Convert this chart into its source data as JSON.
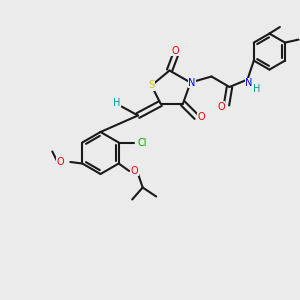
{
  "background_color": "#ebebeb",
  "bond_color": "#1a1a1a",
  "colors": {
    "S": "#cccc00",
    "N": "#0000ee",
    "O": "#ff0000",
    "Cl": "#00aa00",
    "H": "#009999",
    "C": "#1a1a1a"
  },
  "figsize": [
    3.0,
    3.0
  ],
  "dpi": 100
}
